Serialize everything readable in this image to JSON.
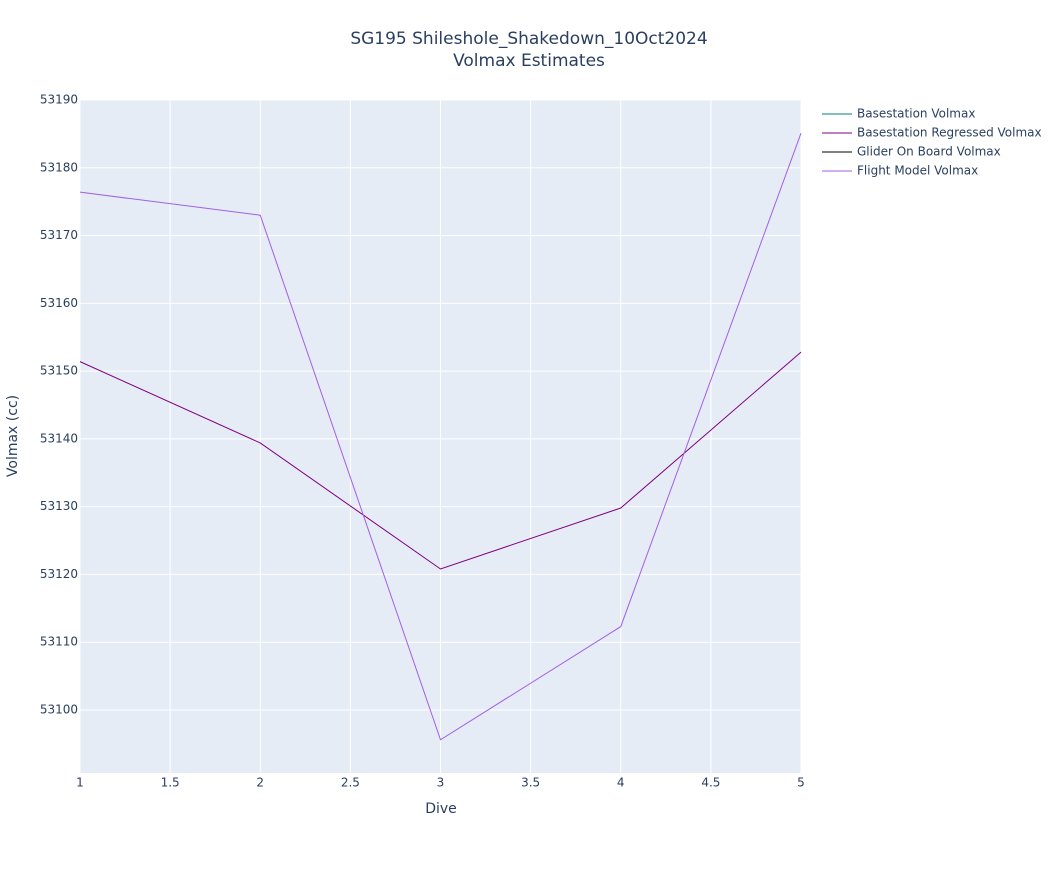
{
  "chart_data": {
    "type": "line",
    "title": "SG195 Shileshole_Shakedown_10Oct2024",
    "subtitle": "Volmax Estimates",
    "x_label": "Dive",
    "y_label": "Volmax (cc)",
    "x": [
      1,
      2,
      3,
      4,
      5
    ],
    "series": [
      {
        "name": "Basestation Volmax",
        "color": "#008080",
        "values": [
          null,
          null,
          null,
          null,
          null
        ]
      },
      {
        "name": "Basestation Regressed Volmax",
        "color": "#800080",
        "values": [
          53151.4,
          53139.4,
          53120.8,
          53129.8,
          53152.8
        ]
      },
      {
        "name": "Glider On Board Volmax",
        "color": "#000000",
        "values": [
          null,
          null,
          null,
          null,
          null
        ]
      },
      {
        "name": "Flight Model Volmax",
        "color": "#a45ee5",
        "values": [
          53176.4,
          53173.0,
          53095.6,
          53112.3,
          53185.1
        ]
      }
    ],
    "xlim": [
      1,
      5
    ],
    "xticks": [
      1,
      1.5,
      2,
      2.5,
      3,
      3.5,
      4,
      4.5,
      5
    ],
    "ylim": [
      53090.7,
      53190
    ],
    "yticks": [
      53100,
      53110,
      53120,
      53130,
      53140,
      53150,
      53160,
      53170,
      53180,
      53190
    ],
    "grid": true,
    "legend": "right"
  }
}
